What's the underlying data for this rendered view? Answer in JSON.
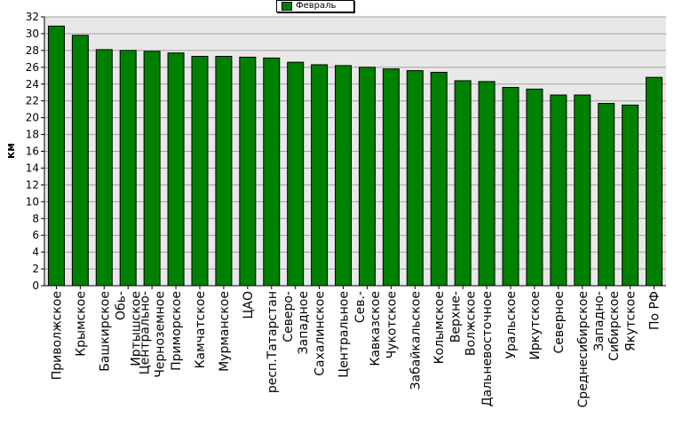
{
  "chart_data": {
    "type": "bar",
    "ylabel": "км",
    "ylim": [
      0,
      32
    ],
    "ytick_step": 2,
    "grid": true,
    "legend_position": "top-center",
    "bar_color": "#008000",
    "plot_background": "#e8e8e8",
    "series": [
      {
        "name": "Февраль",
        "values": [
          30.9,
          29.8,
          28.1,
          28.0,
          27.9,
          27.7,
          27.3,
          27.3,
          27.2,
          27.1,
          26.6,
          26.3,
          26.2,
          26.0,
          25.8,
          25.6,
          25.4,
          24.4,
          24.3,
          23.6,
          23.4,
          22.7,
          22.7,
          21.7,
          21.5,
          24.8
        ]
      }
    ],
    "categories": [
      [
        "Приволжское"
      ],
      [
        "Крымское"
      ],
      [
        "Башкирское"
      ],
      [
        "Обь-",
        "Иртышское"
      ],
      [
        "Центрально-",
        "Черноземное"
      ],
      [
        "Приморское"
      ],
      [
        "Камчатское"
      ],
      [
        "Мурманское"
      ],
      [
        "ЦАО"
      ],
      [
        "респ.Татарстан"
      ],
      [
        "Северо-",
        "Западное"
      ],
      [
        "Сахалинское"
      ],
      [
        "Центральное"
      ],
      [
        "Сев.-",
        "Кавказское"
      ],
      [
        "Чукотское"
      ],
      [
        "Забайкальское"
      ],
      [
        "Колымское"
      ],
      [
        "Верхне-",
        "Волжское"
      ],
      [
        "Дальневосточное"
      ],
      [
        "Уральское"
      ],
      [
        "Иркутское"
      ],
      [
        "Северное"
      ],
      [
        "Среднесибирское"
      ],
      [
        "Западно-",
        "Сибирское"
      ],
      [
        "Якутское"
      ],
      [
        "По РФ"
      ]
    ]
  }
}
